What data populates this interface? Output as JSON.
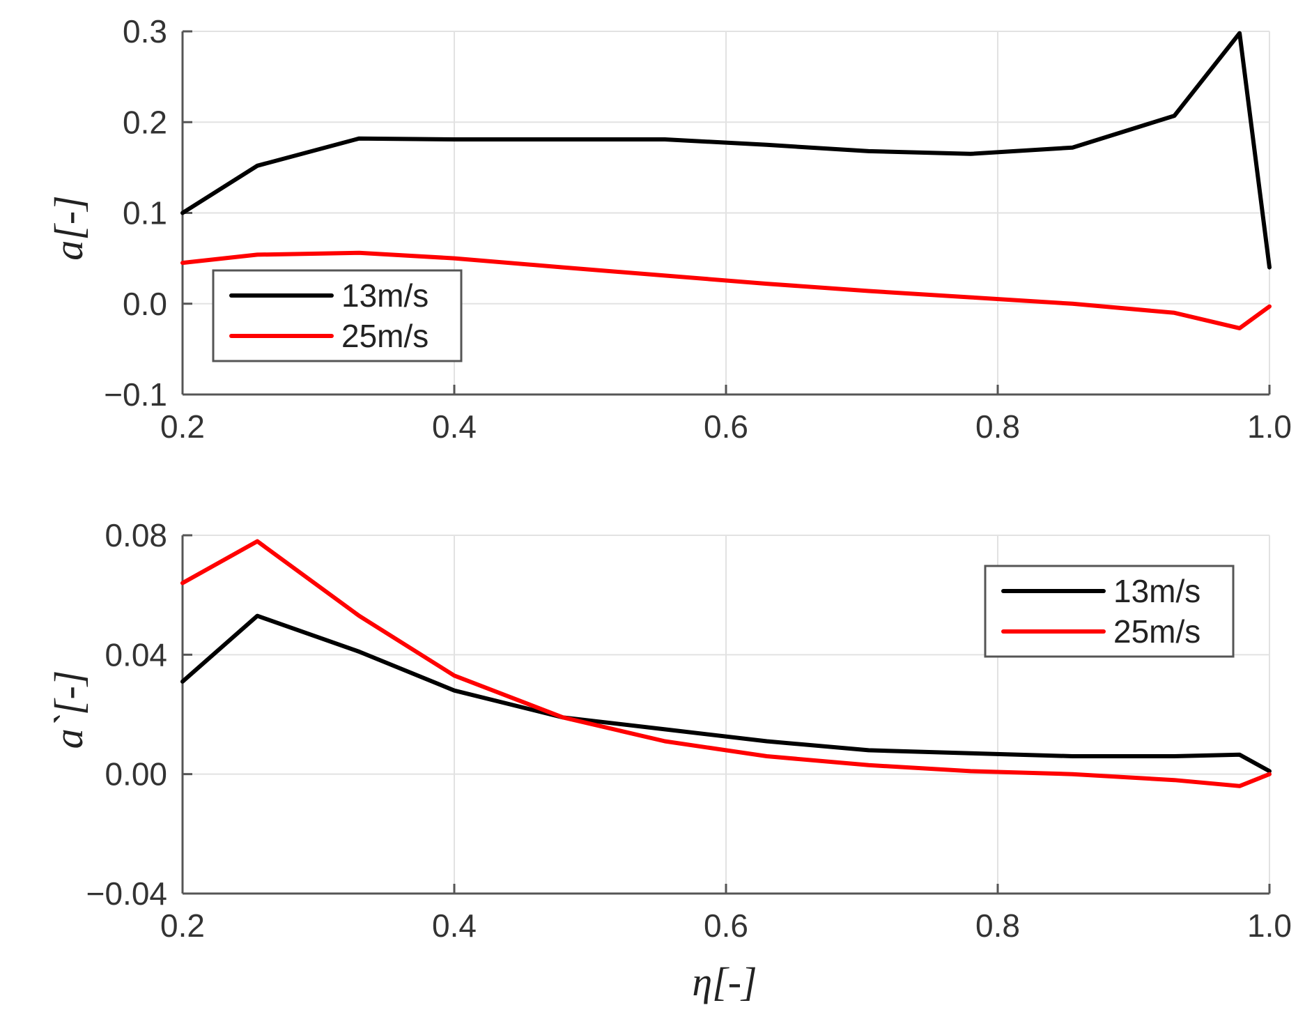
{
  "chart_data": [
    {
      "type": "line",
      "title": "",
      "xlabel": "",
      "ylabel": "a[-]",
      "xlim": [
        0.2,
        1.0
      ],
      "ylim": [
        -0.1,
        0.3
      ],
      "xticks": [
        0.2,
        0.4,
        0.6,
        0.8,
        1.0
      ],
      "xtick_labels": [
        "0.2",
        "0.4",
        "0.6",
        "0.8",
        "1.0"
      ],
      "yticks": [
        -0.1,
        0.0,
        0.1,
        0.2,
        0.3
      ],
      "ytick_labels": [
        "−0.1",
        "0.0",
        "0.1",
        "0.2",
        "0.3"
      ],
      "grid": true,
      "legend_position": "bottom-left",
      "series": [
        {
          "name": "13m/s",
          "color": "#000000",
          "x": [
            0.2,
            0.255,
            0.33,
            0.4,
            0.48,
            0.555,
            0.63,
            0.705,
            0.78,
            0.855,
            0.93,
            0.978,
            1.0
          ],
          "y": [
            0.1,
            0.152,
            0.182,
            0.181,
            0.181,
            0.181,
            0.175,
            0.168,
            0.165,
            0.172,
            0.207,
            0.298,
            0.04
          ]
        },
        {
          "name": "25m/s",
          "color": "#ff0000",
          "x": [
            0.2,
            0.255,
            0.33,
            0.4,
            0.48,
            0.555,
            0.63,
            0.705,
            0.78,
            0.855,
            0.93,
            0.978,
            1.0
          ],
          "y": [
            0.045,
            0.054,
            0.056,
            0.05,
            0.04,
            0.031,
            0.022,
            0.014,
            0.007,
            0.0,
            -0.01,
            -0.027,
            -0.003
          ]
        }
      ]
    },
    {
      "type": "line",
      "title": "",
      "xlabel": "η[-]",
      "ylabel": "a`[-]",
      "xlim": [
        0.2,
        1.0
      ],
      "ylim": [
        -0.04,
        0.08
      ],
      "xticks": [
        0.2,
        0.4,
        0.6,
        0.8,
        1.0
      ],
      "xtick_labels": [
        "0.2",
        "0.4",
        "0.6",
        "0.8",
        "1.0"
      ],
      "yticks": [
        -0.04,
        0.0,
        0.04,
        0.08
      ],
      "ytick_labels": [
        "−0.04",
        "0.00",
        "0.04",
        "0.08"
      ],
      "grid": true,
      "legend_position": "top-right",
      "series": [
        {
          "name": "13m/s",
          "color": "#000000",
          "x": [
            0.2,
            0.255,
            0.33,
            0.4,
            0.48,
            0.555,
            0.63,
            0.705,
            0.78,
            0.855,
            0.93,
            0.978,
            1.0
          ],
          "y": [
            0.031,
            0.053,
            0.041,
            0.028,
            0.019,
            0.015,
            0.011,
            0.008,
            0.007,
            0.006,
            0.006,
            0.0065,
            0.001
          ]
        },
        {
          "name": "25m/s",
          "color": "#ff0000",
          "x": [
            0.2,
            0.255,
            0.33,
            0.4,
            0.48,
            0.555,
            0.63,
            0.705,
            0.78,
            0.855,
            0.93,
            0.978,
            1.0
          ],
          "y": [
            0.064,
            0.078,
            0.053,
            0.033,
            0.019,
            0.011,
            0.006,
            0.003,
            0.001,
            0.0,
            -0.002,
            -0.004,
            0.0
          ]
        }
      ]
    }
  ]
}
